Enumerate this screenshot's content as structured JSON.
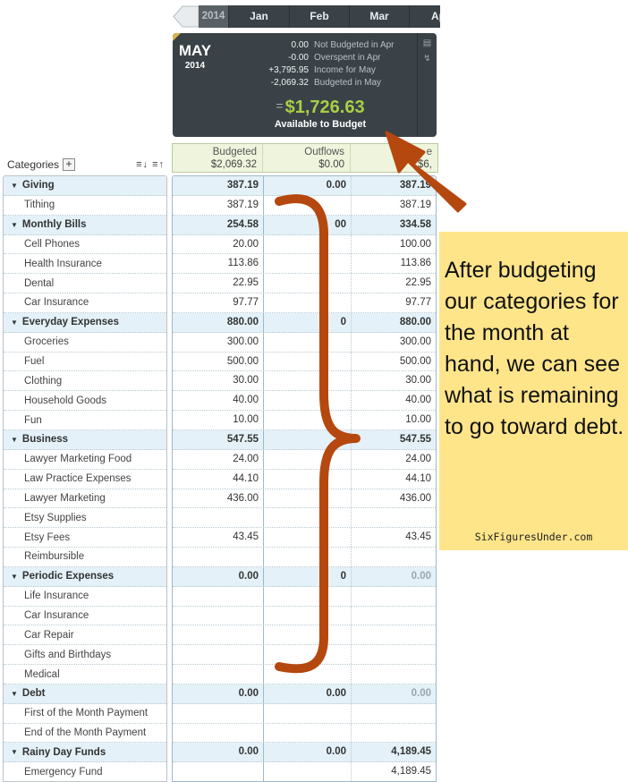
{
  "month_bar": {
    "year": "2014",
    "months": [
      "Jan",
      "Feb",
      "Mar",
      "Ap"
    ]
  },
  "summary": {
    "month": "MAY",
    "year": "2014",
    "lines": [
      {
        "amount": "0.00",
        "label": "Not Budgeted in Apr"
      },
      {
        "amount": "-0.00",
        "label": "Overspent in Apr"
      },
      {
        "amount": "+3,795.95",
        "label": "Income for May"
      },
      {
        "amount": "-2,069.32",
        "label": "Budgeted in May"
      }
    ],
    "equals": "=",
    "available_amount": "$1,726.63",
    "available_label": "Available to Budget"
  },
  "categories_header": {
    "label": "Categories",
    "add": "+",
    "sort_icons": "≡↓ ≡↑"
  },
  "columns": {
    "budgeted": {
      "label": "Budgeted",
      "total": "$2,069.32"
    },
    "outflows": {
      "label": "Outflows",
      "total": "$0.00"
    },
    "balance": {
      "label": "e",
      "total": "$6,"
    }
  },
  "rows": [
    {
      "name": "Giving",
      "group": true,
      "budgeted": "387.19",
      "outflows": "0.00",
      "balance": "387.19"
    },
    {
      "name": "Tithing",
      "budgeted": "387.19",
      "outflows": "",
      "balance": "387.19"
    },
    {
      "name": "Monthly Bills",
      "group": true,
      "budgeted": "254.58",
      "outflows": "00",
      "balance": "334.58"
    },
    {
      "name": "Cell Phones",
      "budgeted": "20.00",
      "outflows": "",
      "balance": "100.00"
    },
    {
      "name": "Health Insurance",
      "budgeted": "113.86",
      "outflows": "",
      "balance": "113.86"
    },
    {
      "name": "Dental",
      "budgeted": "22.95",
      "outflows": "",
      "balance": "22.95"
    },
    {
      "name": "Car Insurance",
      "budgeted": "97.77",
      "outflows": "",
      "balance": "97.77"
    },
    {
      "name": "Everyday Expenses",
      "group": true,
      "budgeted": "880.00",
      "outflows": "0",
      "balance": "880.00"
    },
    {
      "name": "Groceries",
      "budgeted": "300.00",
      "outflows": "",
      "balance": "300.00"
    },
    {
      "name": "Fuel",
      "budgeted": "500.00",
      "outflows": "",
      "balance": "500.00"
    },
    {
      "name": "Clothing",
      "budgeted": "30.00",
      "outflows": "",
      "balance": "30.00"
    },
    {
      "name": "Household Goods",
      "budgeted": "40.00",
      "outflows": "",
      "balance": "40.00"
    },
    {
      "name": "Fun",
      "budgeted": "10.00",
      "outflows": "",
      "balance": "10.00"
    },
    {
      "name": "Business",
      "group": true,
      "budgeted": "547.55",
      "outflows": "0",
      "balance": "547.55"
    },
    {
      "name": "Lawyer Marketing Food",
      "budgeted": "24.00",
      "outflows": "",
      "balance": "24.00"
    },
    {
      "name": "Law Practice Expenses",
      "budgeted": "44.10",
      "outflows": "",
      "balance": "44.10"
    },
    {
      "name": "Lawyer Marketing",
      "budgeted": "436.00",
      "outflows": "",
      "balance": "436.00"
    },
    {
      "name": "Etsy Supplies",
      "budgeted": "",
      "outflows": "",
      "balance": ""
    },
    {
      "name": "Etsy Fees",
      "budgeted": "43.45",
      "outflows": "",
      "balance": "43.45"
    },
    {
      "name": "Reimbursible",
      "budgeted": "",
      "outflows": "",
      "balance": ""
    },
    {
      "name": "Periodic Expenses",
      "group": true,
      "budgeted": "0.00",
      "outflows": "0",
      "balance": "0.00",
      "zero_balance": true
    },
    {
      "name": "Life Insurance",
      "budgeted": "",
      "outflows": "",
      "balance": ""
    },
    {
      "name": "Car Insurance",
      "budgeted": "",
      "outflows": "",
      "balance": ""
    },
    {
      "name": "Car Repair",
      "budgeted": "",
      "outflows": "",
      "balance": ""
    },
    {
      "name": "Gifts and Birthdays",
      "budgeted": "",
      "outflows": "",
      "balance": ""
    },
    {
      "name": "Medical",
      "budgeted": "",
      "outflows": "",
      "balance": ""
    },
    {
      "name": "Debt",
      "group": true,
      "budgeted": "0.00",
      "outflows": "0.00",
      "balance": "0.00",
      "zero_balance": true
    },
    {
      "name": "First of the Month Payment",
      "budgeted": "",
      "outflows": "",
      "balance": ""
    },
    {
      "name": "End of the Month Payment",
      "budgeted": "",
      "outflows": "",
      "balance": ""
    },
    {
      "name": "Rainy Day Funds",
      "group": true,
      "budgeted": "0.00",
      "outflows": "0.00",
      "balance": "4,189.45"
    },
    {
      "name": "Emergency Fund",
      "budgeted": "",
      "outflows": "",
      "balance": "4,189.45"
    }
  ],
  "annotation": {
    "note": "After budgeting our categories for the month at hand, we can see what is remaining to go toward debt.",
    "source": "SixFiguresUnder.com",
    "arrow_color": "#b5480f",
    "brace_color": "#b5480f",
    "note_bg": "#ffe58a"
  }
}
